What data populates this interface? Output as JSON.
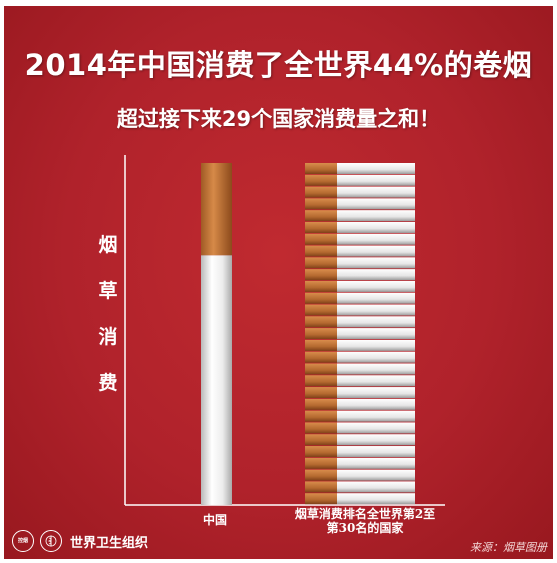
{
  "title": "2014年中国消费了全世界44%的卷烟",
  "subtitle": "超过接下来29个国家消费量之和！",
  "ylabel_chars": [
    "烟",
    "草",
    "消",
    "费"
  ],
  "logos": {
    "control_label": "控烟",
    "who_name": "世界卫生组织"
  },
  "source": "来源：烟草图册",
  "colors": {
    "background": "#b0222b",
    "filter": "#c57a3e",
    "paper": "#f2f2f2",
    "axis": "#ffffff"
  },
  "chart_data": {
    "type": "bar",
    "title": "2014年中国消费了全世界44%的卷烟",
    "subtitle": "超过接下来29个国家消费量之和！",
    "ylabel": "烟草消费",
    "xlabel": "",
    "categories": [
      "中国",
      "烟草消费排名全世界第2至第30名的国家"
    ],
    "values": [
      44,
      44
    ],
    "stacked_cigarettes": [
      1,
      29
    ],
    "unit": "% of world cigarettes",
    "grid": false,
    "legend": "none"
  }
}
